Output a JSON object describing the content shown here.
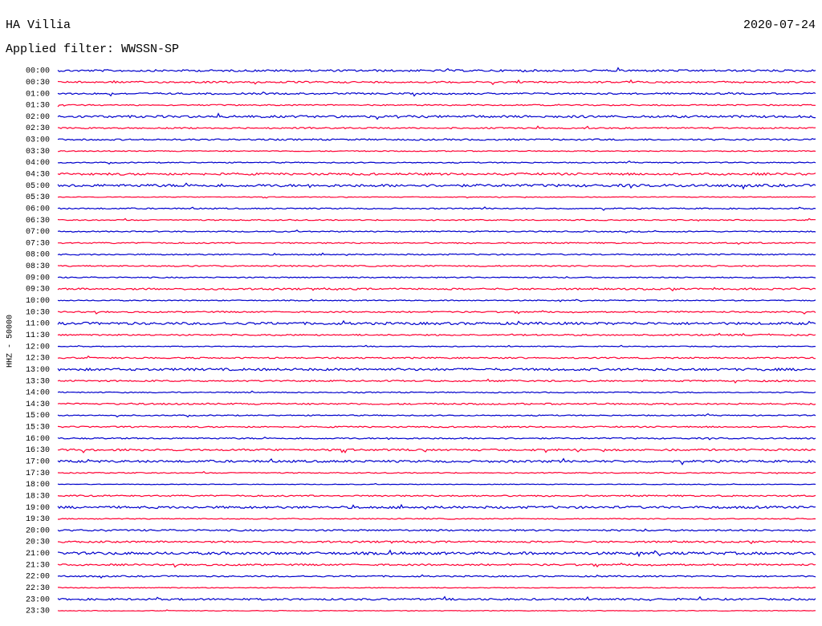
{
  "chart_data": {
    "type": "helicorder",
    "title": "HA Villia",
    "date": "2020-07-24",
    "subtitle": "Applied filter: WWSSN-SP",
    "ylabel": "HHZ - 50000",
    "categories": [
      "00:00",
      "00:30",
      "01:00",
      "01:30",
      "02:00",
      "02:30",
      "03:00",
      "03:30",
      "04:00",
      "04:30",
      "05:00",
      "05:30",
      "06:00",
      "06:30",
      "07:00",
      "07:30",
      "08:00",
      "08:30",
      "09:00",
      "09:30",
      "10:00",
      "10:30",
      "11:00",
      "11:30",
      "12:00",
      "12:30",
      "13:00",
      "13:30",
      "14:00",
      "14:30",
      "15:00",
      "15:30",
      "16:00",
      "16:30",
      "17:00",
      "17:30",
      "18:00",
      "18:30",
      "19:00",
      "19:30",
      "20:00",
      "20:30",
      "21:00",
      "21:30",
      "22:00",
      "22:30",
      "23:00",
      "23:30"
    ],
    "colors": [
      "#0000cc",
      "#ff0033"
    ]
  }
}
